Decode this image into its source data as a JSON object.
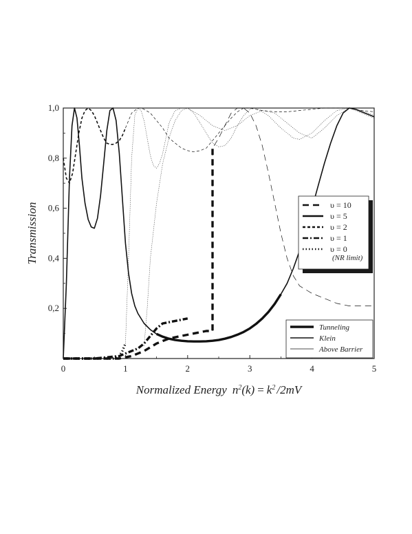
{
  "chart_data": {
    "type": "line",
    "xlabel": "Normalized Energy",
    "xlabel_formula": {
      "lhs_n": "n",
      "lhs_exp": "2",
      "lhs_arg": "(k)",
      "eq": "=",
      "k": "k",
      "k_exp": "2",
      "rhs": "/2mV"
    },
    "ylabel": "Transmission",
    "xlim": [
      0,
      5
    ],
    "ylim": [
      0,
      1.0
    ],
    "xticks": [
      "0",
      "1",
      "2",
      "3",
      "4",
      "5"
    ],
    "yticks": [
      "0,2",
      "0,4",
      "0,6",
      "0,8",
      "1,0"
    ],
    "ytick_values": [
      0.2,
      0.4,
      0.6,
      0.8,
      1.0
    ],
    "grid": false,
    "potential_legend": {
      "placement": "right",
      "items": [
        {
          "symbol": "υ",
          "eq": "=",
          "value": "10",
          "style": "dash"
        },
        {
          "symbol": "υ",
          "eq": "=",
          "value": "5",
          "style": "solid"
        },
        {
          "symbol": "υ",
          "eq": "=",
          "value": "2",
          "style": "short-dash"
        },
        {
          "symbol": "υ",
          "eq": "=",
          "value": "1",
          "style": "dash-dot"
        },
        {
          "symbol": "υ",
          "eq": "=",
          "value": "0",
          "style": "dot"
        }
      ],
      "note": "(NR limit)"
    },
    "regime_legend": {
      "placement": "lower-right",
      "items": [
        {
          "label": "Tunneling",
          "weight": "thick"
        },
        {
          "label": "Klein",
          "weight": "medium"
        },
        {
          "label": "Above Barrier",
          "weight": "thin"
        }
      ]
    },
    "series": [
      {
        "potential": "10",
        "style": "dash",
        "points": [
          [
            0.0,
            0.0
          ],
          [
            0.3,
            0.0
          ],
          [
            0.6,
            0.0
          ],
          [
            0.9,
            0.0
          ],
          [
            1.1,
            0.01
          ],
          [
            1.3,
            0.03
          ],
          [
            1.5,
            0.06
          ],
          [
            1.7,
            0.08
          ],
          [
            1.9,
            0.09
          ],
          [
            2.1,
            0.1
          ],
          [
            2.3,
            0.11
          ],
          [
            2.4,
            0.11
          ],
          [
            2.4,
            0.84
          ],
          [
            2.5,
            0.88
          ],
          [
            2.6,
            0.93
          ],
          [
            2.7,
            0.98
          ],
          [
            2.8,
            1.0
          ],
          [
            2.9,
            1.0
          ],
          [
            3.0,
            0.98
          ],
          [
            3.1,
            0.93
          ],
          [
            3.2,
            0.85
          ],
          [
            3.3,
            0.74
          ],
          [
            3.4,
            0.62
          ],
          [
            3.5,
            0.5
          ],
          [
            3.6,
            0.4
          ],
          [
            3.7,
            0.33
          ],
          [
            3.8,
            0.29
          ],
          [
            4.0,
            0.26
          ],
          [
            4.2,
            0.24
          ],
          [
            4.4,
            0.22
          ],
          [
            4.6,
            0.21
          ],
          [
            4.8,
            0.21
          ],
          [
            5.0,
            0.21
          ]
        ],
        "regimes": [
          {
            "regime": "Tunneling",
            "x": [
              0.0,
              2.4
            ]
          },
          {
            "regime": "Above Barrier",
            "x": [
              2.4,
              5.0
            ]
          }
        ]
      },
      {
        "potential": "5",
        "style": "solid",
        "points": [
          [
            0.0,
            0.0
          ],
          [
            0.05,
            0.3
          ],
          [
            0.1,
            0.72
          ],
          [
            0.14,
            0.93
          ],
          [
            0.18,
            1.0
          ],
          [
            0.22,
            0.96
          ],
          [
            0.26,
            0.85
          ],
          [
            0.3,
            0.72
          ],
          [
            0.35,
            0.62
          ],
          [
            0.4,
            0.555
          ],
          [
            0.45,
            0.525
          ],
          [
            0.5,
            0.52
          ],
          [
            0.55,
            0.56
          ],
          [
            0.6,
            0.65
          ],
          [
            0.65,
            0.78
          ],
          [
            0.7,
            0.91
          ],
          [
            0.75,
            0.99
          ],
          [
            0.8,
            1.0
          ],
          [
            0.85,
            0.95
          ],
          [
            0.9,
            0.82
          ],
          [
            0.95,
            0.64
          ],
          [
            1.0,
            0.46
          ],
          [
            1.05,
            0.34
          ],
          [
            1.1,
            0.26
          ],
          [
            1.15,
            0.21
          ],
          [
            1.2,
            0.18
          ],
          [
            1.3,
            0.14
          ],
          [
            1.4,
            0.115
          ],
          [
            1.5,
            0.098
          ],
          [
            1.6,
            0.087
          ],
          [
            1.7,
            0.079
          ],
          [
            1.8,
            0.074
          ],
          [
            1.9,
            0.071
          ],
          [
            2.0,
            0.069
          ],
          [
            2.1,
            0.068
          ],
          [
            2.2,
            0.068
          ],
          [
            2.3,
            0.069
          ],
          [
            2.4,
            0.071
          ],
          [
            2.5,
            0.074
          ],
          [
            2.6,
            0.079
          ],
          [
            2.7,
            0.086
          ],
          [
            2.8,
            0.095
          ],
          [
            2.9,
            0.106
          ],
          [
            3.0,
            0.12
          ],
          [
            3.1,
            0.138
          ],
          [
            3.2,
            0.16
          ],
          [
            3.3,
            0.186
          ],
          [
            3.4,
            0.218
          ],
          [
            3.5,
            0.257
          ],
          [
            3.6,
            0.3
          ],
          [
            3.7,
            0.36
          ],
          [
            3.8,
            0.43
          ],
          [
            3.9,
            0.51
          ],
          [
            4.0,
            0.6
          ],
          [
            4.1,
            0.69
          ],
          [
            4.2,
            0.78
          ],
          [
            4.3,
            0.86
          ],
          [
            4.4,
            0.93
          ],
          [
            4.5,
            0.98
          ],
          [
            4.6,
            1.0
          ],
          [
            4.7,
            0.995
          ],
          [
            4.8,
            0.985
          ],
          [
            4.9,
            0.975
          ],
          [
            5.0,
            0.965
          ]
        ],
        "regimes": [
          {
            "regime": "Klein",
            "x": [
              0.0,
              1.5
            ]
          },
          {
            "regime": "Tunneling",
            "x": [
              1.5,
              3.5
            ]
          },
          {
            "regime": "Klein",
            "x": [
              3.5,
              5.0
            ]
          }
        ]
      },
      {
        "potential": "2",
        "style": "short-dash",
        "points": [
          [
            0.0,
            0.8
          ],
          [
            0.05,
            0.72
          ],
          [
            0.1,
            0.7
          ],
          [
            0.15,
            0.74
          ],
          [
            0.2,
            0.82
          ],
          [
            0.25,
            0.9
          ],
          [
            0.3,
            0.96
          ],
          [
            0.35,
            0.99
          ],
          [
            0.4,
            1.0
          ],
          [
            0.45,
            0.99
          ],
          [
            0.5,
            0.97
          ],
          [
            0.55,
            0.94
          ],
          [
            0.6,
            0.91
          ],
          [
            0.65,
            0.88
          ],
          [
            0.7,
            0.86
          ],
          [
            0.75,
            0.855
          ],
          [
            0.8,
            0.855
          ],
          [
            0.85,
            0.86
          ],
          [
            0.9,
            0.87
          ],
          [
            0.95,
            0.89
          ],
          [
            1.0,
            0.92
          ],
          [
            1.05,
            0.95
          ],
          [
            1.1,
            0.98
          ],
          [
            1.15,
            0.99
          ],
          [
            1.2,
            1.0
          ],
          [
            1.25,
            1.0
          ],
          [
            1.3,
            0.995
          ],
          [
            1.4,
            0.98
          ],
          [
            1.5,
            0.95
          ],
          [
            1.6,
            0.92
          ],
          [
            1.7,
            0.88
          ],
          [
            1.8,
            0.86
          ],
          [
            1.9,
            0.84
          ],
          [
            2.0,
            0.83
          ],
          [
            2.1,
            0.825
          ],
          [
            2.2,
            0.83
          ],
          [
            2.3,
            0.84
          ],
          [
            2.4,
            0.87
          ],
          [
            2.5,
            0.9
          ],
          [
            2.6,
            0.93
          ],
          [
            2.7,
            0.96
          ],
          [
            2.8,
            0.985
          ],
          [
            2.9,
            1.0
          ],
          [
            3.0,
            1.0
          ],
          [
            3.2,
            0.99
          ],
          [
            3.4,
            0.985
          ],
          [
            3.6,
            0.985
          ],
          [
            3.8,
            0.99
          ],
          [
            4.0,
            0.995
          ],
          [
            4.2,
            1.0
          ],
          [
            4.4,
            1.0
          ],
          [
            4.6,
            1.0
          ],
          [
            4.8,
            0.99
          ],
          [
            5.0,
            0.985
          ]
        ],
        "regimes": [
          {
            "regime": "Klein",
            "x": [
              0.0,
              1.0
            ]
          },
          {
            "regime": "Above Barrier",
            "x": [
              1.0,
              5.0
            ]
          }
        ]
      },
      {
        "potential": "1",
        "style": "dash-dot",
        "points": [
          [
            0.0,
            0.0
          ],
          [
            0.5,
            0.0
          ],
          [
            0.9,
            0.01
          ],
          [
            1.0,
            0.02
          ],
          [
            1.1,
            0.03
          ],
          [
            1.2,
            0.04
          ],
          [
            1.3,
            0.06
          ],
          [
            1.4,
            0.09
          ],
          [
            1.5,
            0.12
          ],
          [
            1.6,
            0.14
          ],
          [
            1.7,
            0.145
          ],
          [
            1.8,
            0.15
          ],
          [
            1.9,
            0.155
          ],
          [
            2.0,
            0.16
          ]
        ],
        "regimes": [
          {
            "regime": "Tunneling",
            "x": [
              0.0,
              2.0
            ]
          }
        ]
      },
      {
        "potential": "0",
        "style": "dot",
        "points": [
          [
            0.0,
            0.0
          ],
          [
            0.2,
            0.0
          ],
          [
            0.4,
            0.0
          ],
          [
            0.6,
            0.0
          ],
          [
            0.8,
            0.0
          ],
          [
            0.9,
            0.01
          ],
          [
            0.95,
            0.03
          ],
          [
            1.0,
            0.06
          ]
        ],
        "regimes": [
          {
            "regime": "Tunneling",
            "x": [
              0.0,
              1.0
            ]
          }
        ]
      }
    ],
    "above_barrier_oscillations": [
      {
        "points": [
          [
            1.0,
            0.06
          ],
          [
            1.05,
            0.4
          ],
          [
            1.1,
            0.8
          ],
          [
            1.15,
            0.97
          ],
          [
            1.2,
            1.0
          ],
          [
            1.25,
            0.99
          ],
          [
            1.3,
            0.95
          ],
          [
            1.35,
            0.88
          ],
          [
            1.4,
            0.81
          ],
          [
            1.45,
            0.77
          ],
          [
            1.5,
            0.76
          ],
          [
            1.55,
            0.78
          ],
          [
            1.6,
            0.82
          ],
          [
            1.65,
            0.88
          ],
          [
            1.7,
            0.94
          ],
          [
            1.8,
            0.99
          ],
          [
            1.9,
            1.0
          ],
          [
            2.0,
            1.0
          ],
          [
            2.2,
            0.97
          ],
          [
            2.4,
            0.93
          ],
          [
            2.6,
            0.91
          ],
          [
            2.8,
            0.93
          ],
          [
            3.0,
            0.97
          ],
          [
            3.2,
            0.99
          ],
          [
            3.4,
            0.98
          ],
          [
            3.6,
            0.94
          ],
          [
            3.8,
            0.9
          ],
          [
            4.0,
            0.88
          ],
          [
            4.2,
            0.92
          ],
          [
            4.4,
            0.97
          ],
          [
            4.6,
            1.0
          ],
          [
            4.8,
            0.99
          ],
          [
            5.0,
            0.97
          ]
        ]
      },
      {
        "points": [
          [
            1.3,
            0.05
          ],
          [
            1.35,
            0.2
          ],
          [
            1.4,
            0.4
          ],
          [
            1.5,
            0.62
          ],
          [
            1.6,
            0.78
          ],
          [
            1.7,
            0.88
          ],
          [
            1.8,
            0.95
          ],
          [
            1.9,
            0.99
          ],
          [
            2.0,
            1.0
          ],
          [
            2.1,
            0.98
          ],
          [
            2.2,
            0.94
          ],
          [
            2.3,
            0.9
          ],
          [
            2.4,
            0.86
          ],
          [
            2.5,
            0.845
          ],
          [
            2.6,
            0.85
          ],
          [
            2.7,
            0.88
          ],
          [
            2.8,
            0.93
          ],
          [
            2.9,
            0.97
          ],
          [
            3.0,
            0.995
          ],
          [
            3.1,
            1.0
          ],
          [
            3.3,
            0.97
          ],
          [
            3.5,
            0.92
          ],
          [
            3.7,
            0.88
          ],
          [
            3.8,
            0.875
          ],
          [
            4.0,
            0.9
          ],
          [
            4.2,
            0.95
          ],
          [
            4.4,
            0.99
          ],
          [
            4.6,
            1.0
          ],
          [
            4.8,
            0.98
          ],
          [
            5.0,
            0.96
          ]
        ]
      }
    ]
  }
}
